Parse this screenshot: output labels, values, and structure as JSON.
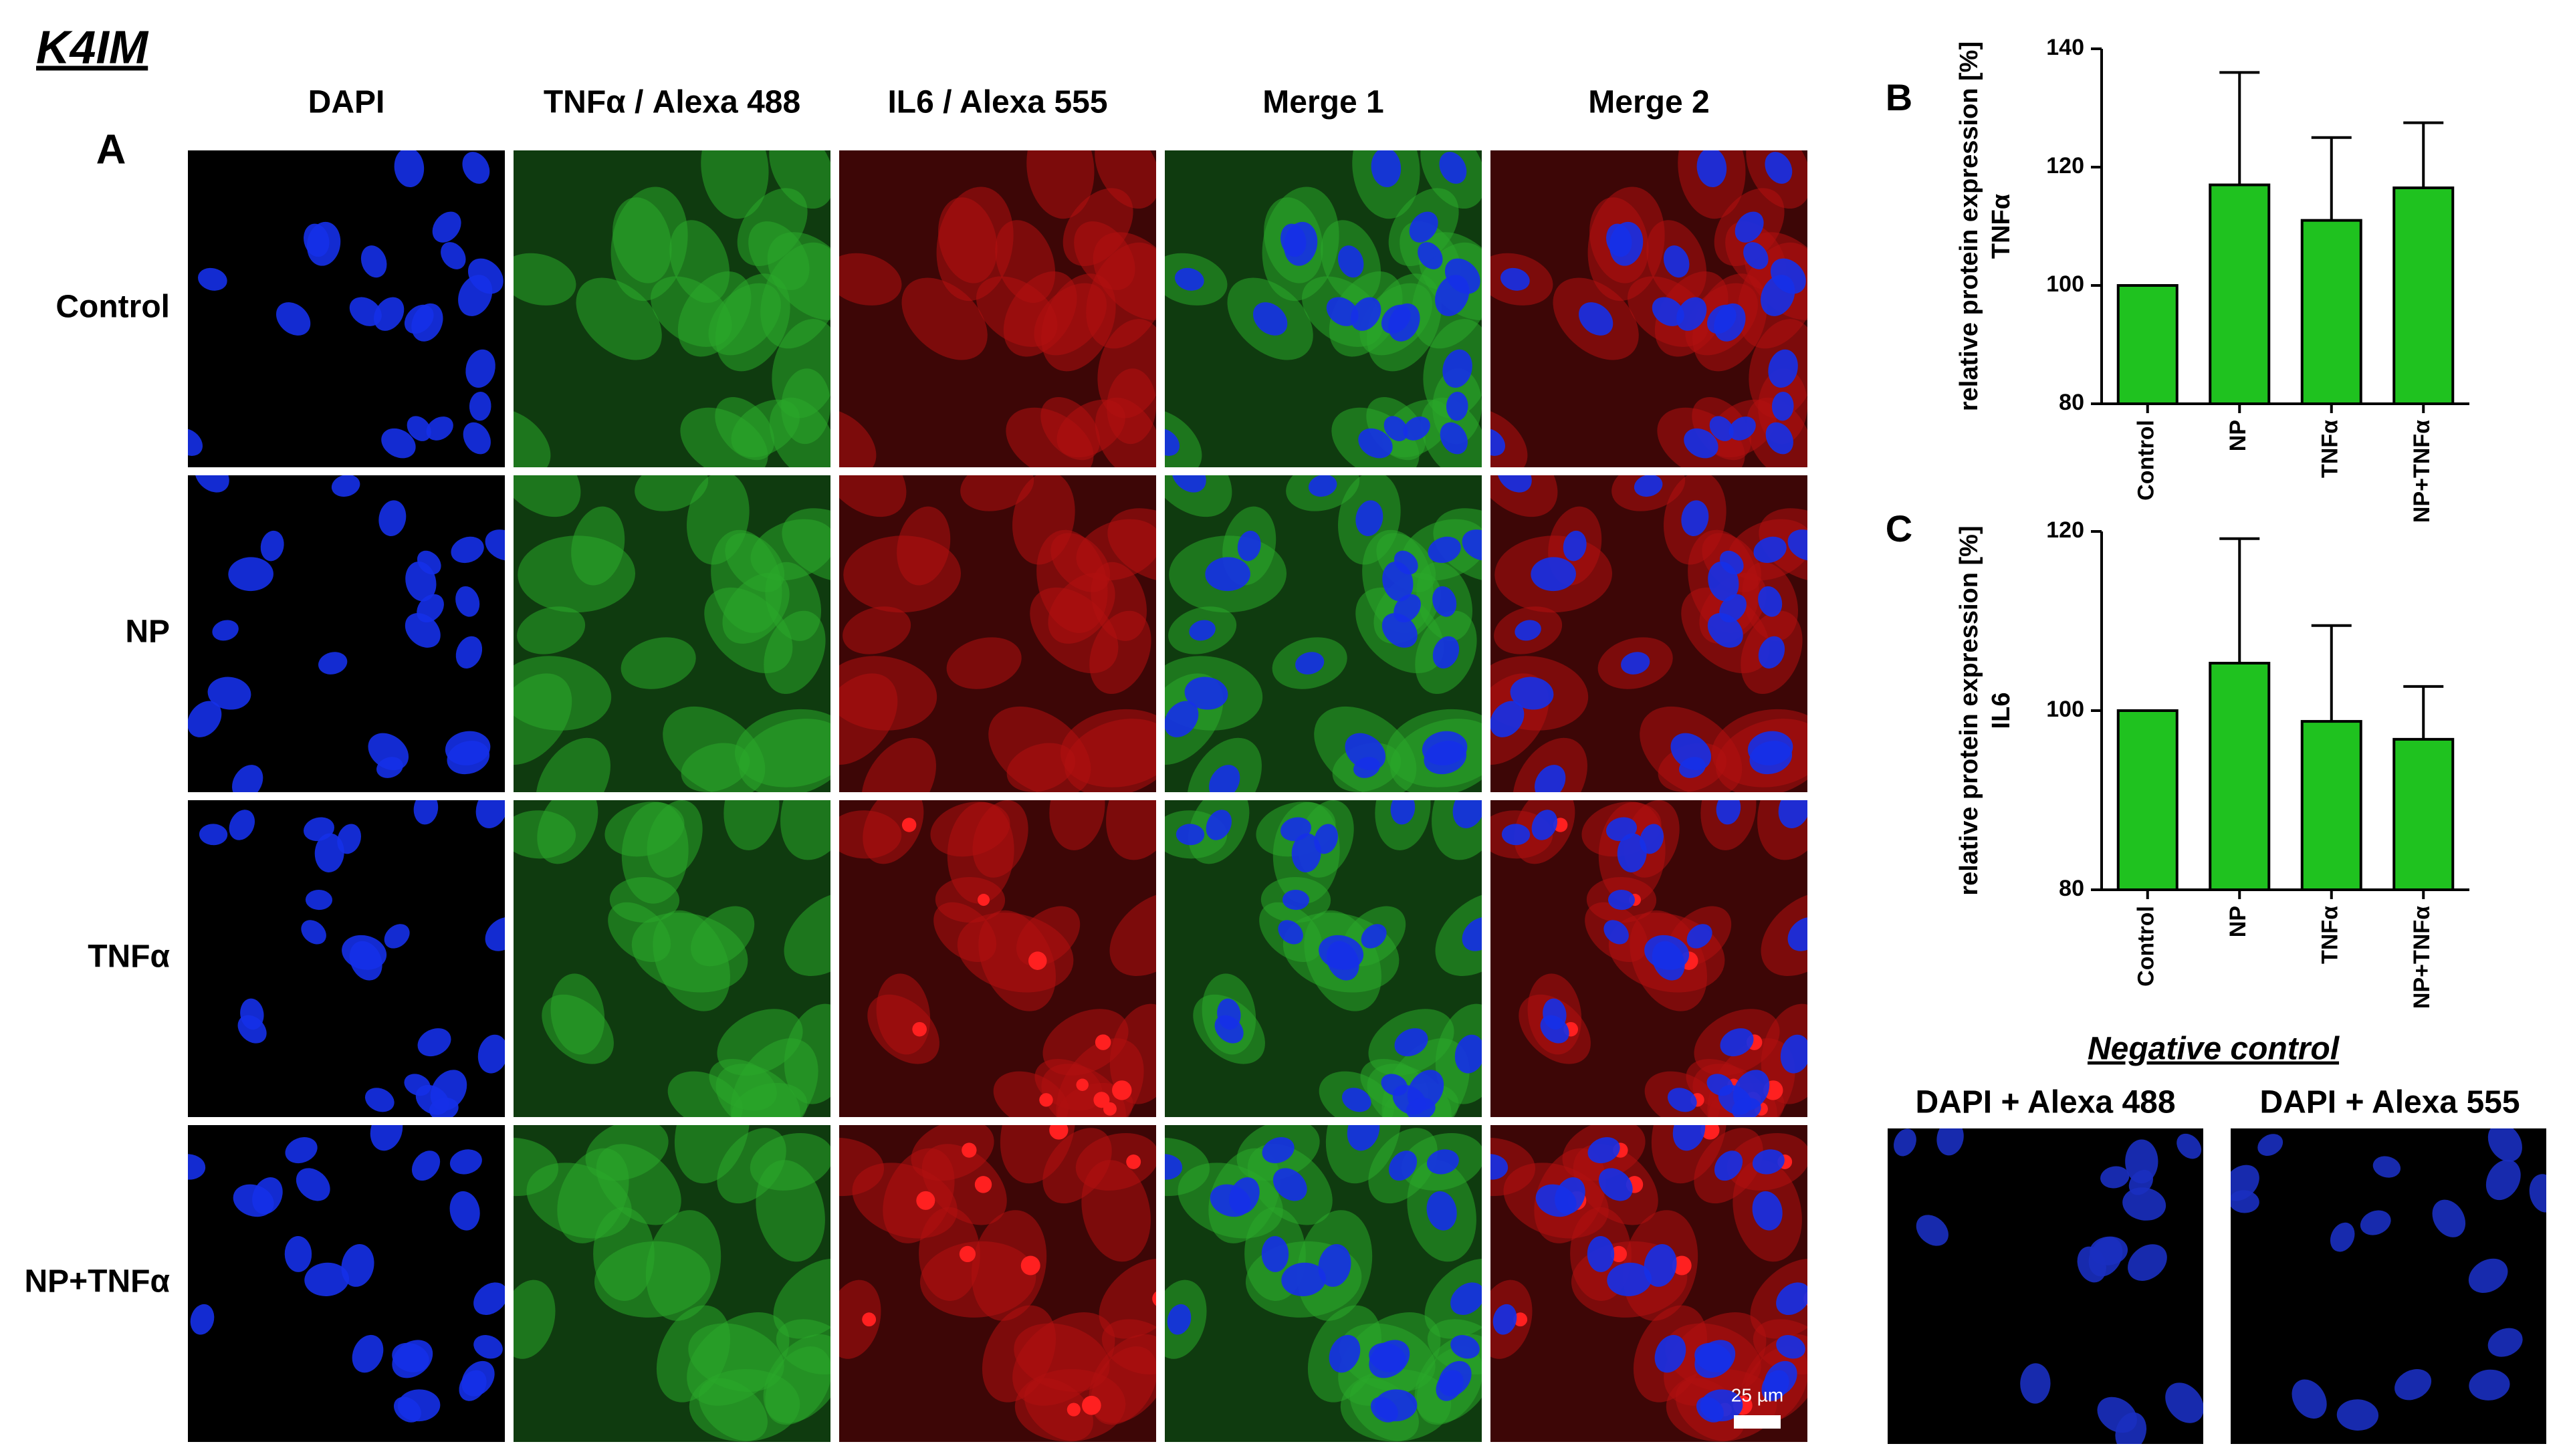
{
  "figure": {
    "title": "K4IM",
    "panel_a": "A",
    "columns": [
      "DAPI",
      "TNFα / Alexa 488",
      "IL6 / Alexa 555",
      "Merge 1",
      "Merge 2"
    ],
    "rows": [
      "Control",
      "NP",
      "TNFα",
      "NP+TNFα"
    ],
    "scale_bar": "25 µm",
    "negative_control": {
      "title": "Negative control",
      "columns": [
        "DAPI + Alexa 488",
        "DAPI + Alexa 555"
      ]
    }
  },
  "chart_data": [
    {
      "type": "bar",
      "panel": "B",
      "y_label": "relative protein expression [%]",
      "y_label_sub": "TNFα",
      "categories": [
        "Control",
        "NP",
        "TNFα",
        "NP+TNFα"
      ],
      "values": [
        100,
        117,
        111,
        116.5
      ],
      "errors": [
        0,
        19,
        14,
        11
      ],
      "color": "#1fc21f",
      "ylim": [
        80,
        140
      ],
      "yticks": [
        80,
        100,
        120,
        140
      ]
    },
    {
      "type": "bar",
      "panel": "C",
      "y_label": "relative protein expression [%]",
      "y_label_sub": "IL6",
      "categories": [
        "Control",
        "NP",
        "TNFα",
        "NP+TNFα"
      ],
      "values": [
        100,
        105.3,
        98.8,
        96.8
      ],
      "errors": [
        0,
        13.9,
        10.7,
        5.9
      ],
      "color": "#1fc21f",
      "ylim": [
        80,
        120
      ],
      "yticks": [
        80,
        100,
        120
      ]
    }
  ]
}
